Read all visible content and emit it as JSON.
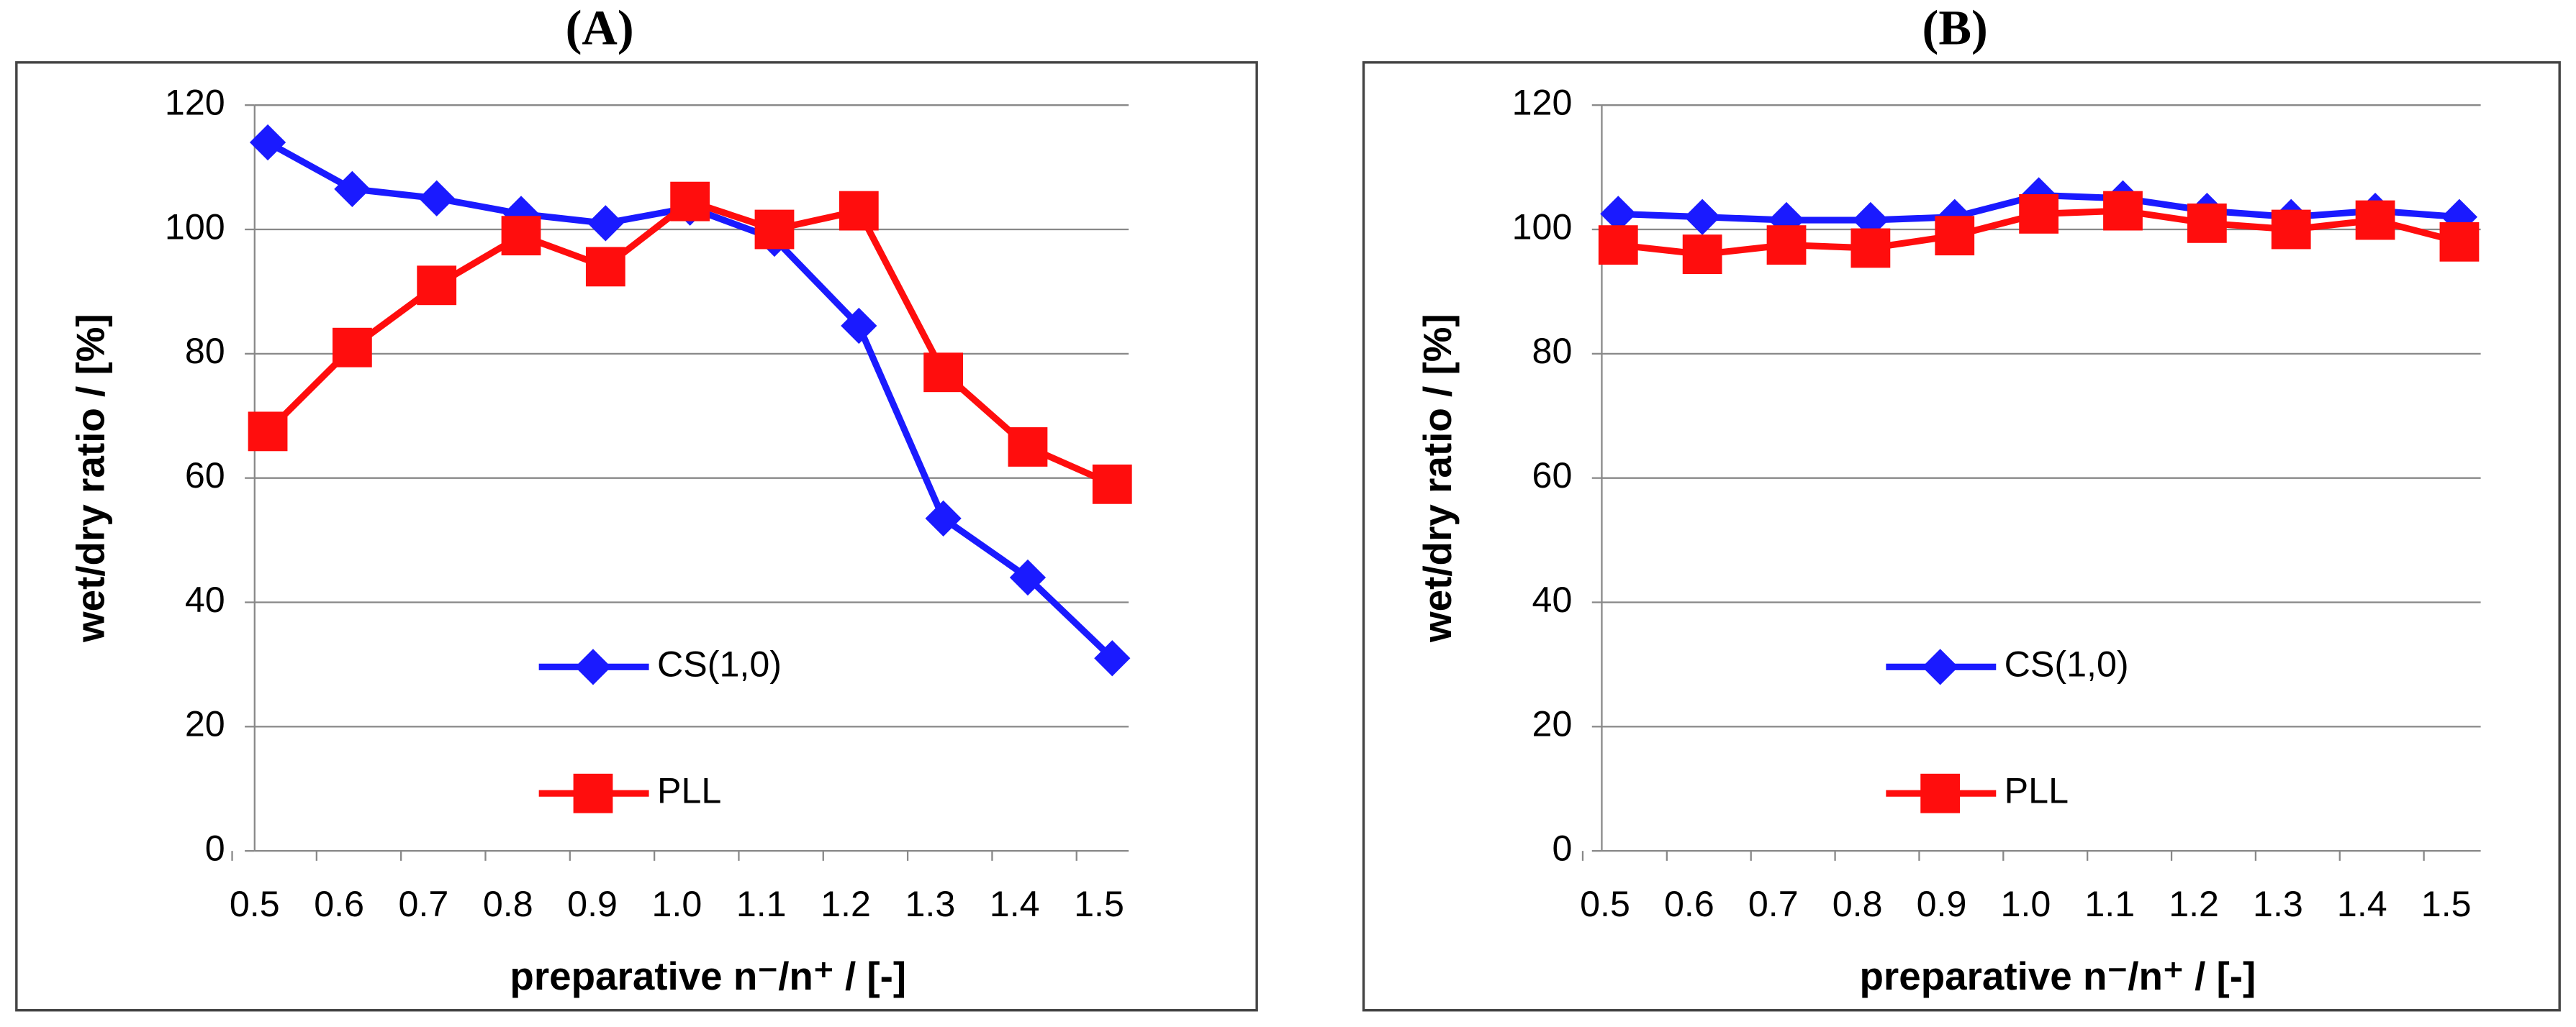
{
  "chart_data": [
    {
      "type": "line",
      "title": "(A)",
      "x_label": "preparative n⁻/n⁺ / [-]",
      "y_label": "wet/dry ratio /  [%]",
      "categories": [
        "0.5",
        "0.6",
        "0.7",
        "0.8",
        "0.9",
        "1.0",
        "1.1",
        "1.2",
        "1.3",
        "1.4",
        "1.5"
      ],
      "series": [
        {
          "name": "CS(1,0)",
          "color": "#1a1aff",
          "marker": "diamond",
          "values": [
            114,
            106.5,
            105,
            102.5,
            101,
            103.5,
            98.5,
            84.5,
            53.5,
            44,
            31
          ]
        },
        {
          "name": "PLL",
          "color": "#ff0d0d",
          "marker": "square",
          "values": [
            67.5,
            81,
            91,
            99,
            94,
            104.5,
            100,
            103,
            77,
            65,
            59
          ]
        }
      ],
      "ylim": [
        0,
        120
      ],
      "yticks": [
        0,
        20,
        40,
        60,
        80,
        100,
        120
      ],
      "grid": true,
      "legend": "lower center"
    },
    {
      "type": "line",
      "title": "(B)",
      "x_label": "preparative n⁻/n⁺ / [-]",
      "y_label": "wet/dry ratio /  [%]",
      "categories": [
        "0.5",
        "0.6",
        "0.7",
        "0.8",
        "0.9",
        "1.0",
        "1.1",
        "1.2",
        "1.3",
        "1.4",
        "1.5"
      ],
      "series": [
        {
          "name": "CS(1,0)",
          "color": "#1a1aff",
          "marker": "diamond",
          "values": [
            102.5,
            102,
            101.5,
            101.5,
            102,
            105.5,
            105,
            103,
            102,
            103,
            102
          ]
        },
        {
          "name": "PLL",
          "color": "#ff0d0d",
          "marker": "square",
          "values": [
            97.5,
            96,
            97.5,
            97,
            99,
            102.5,
            103,
            101,
            100,
            101.5,
            98
          ]
        }
      ],
      "ylim": [
        0,
        120
      ],
      "yticks": [
        0,
        20,
        40,
        60,
        80,
        100,
        120
      ],
      "grid": true,
      "legend": "lower center"
    }
  ]
}
